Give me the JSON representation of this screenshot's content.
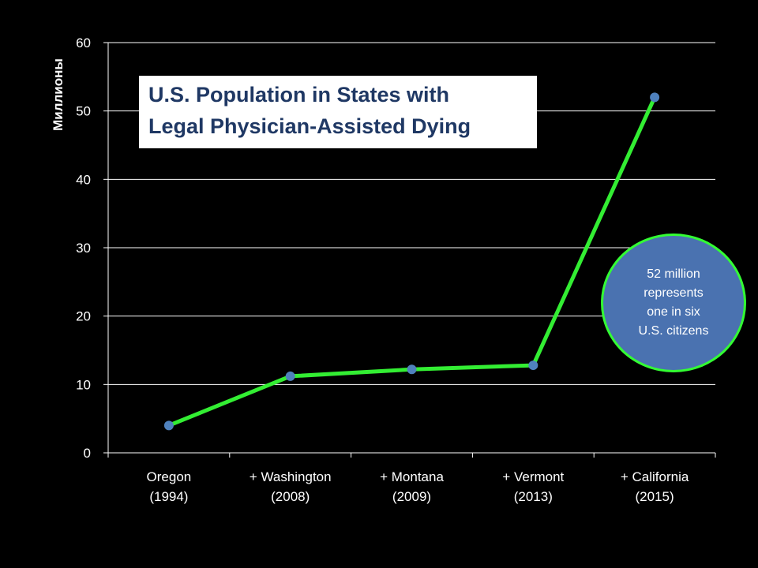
{
  "chart_data": {
    "type": "line",
    "title": "U.S. Population in States with Legal Physician-Assisted Dying",
    "title_lines": [
      "U.S. Population in States with",
      "Legal Physician-Assisted Dying"
    ],
    "ylabel": "Миллионы",
    "xlabel": "",
    "ylim": [
      0,
      60
    ],
    "yticks": [
      "0",
      "10",
      "20",
      "30",
      "40",
      "50",
      "60"
    ],
    "grid": true,
    "categories": [
      [
        "Oregon",
        "(1994)"
      ],
      [
        "+ Washington",
        "(2008)"
      ],
      [
        "+ Montana",
        "(2009)"
      ],
      [
        "+ Vermont",
        "(2013)"
      ],
      [
        "+ California",
        "(2015)"
      ]
    ],
    "series": [
      {
        "values": [
          4,
          11.2,
          12.2,
          12.8,
          52
        ]
      }
    ],
    "annotation": {
      "lines": [
        "52 million",
        "represents",
        "one in six",
        "U.S. citizens"
      ]
    },
    "colors": {
      "background": "#000000",
      "line": "#33ee33",
      "marker": "#4f81bd",
      "grid": "#ffffff",
      "title_text": "#1f3864",
      "callout_fill": "#4a72b0",
      "callout_border": "#33ff33"
    }
  }
}
